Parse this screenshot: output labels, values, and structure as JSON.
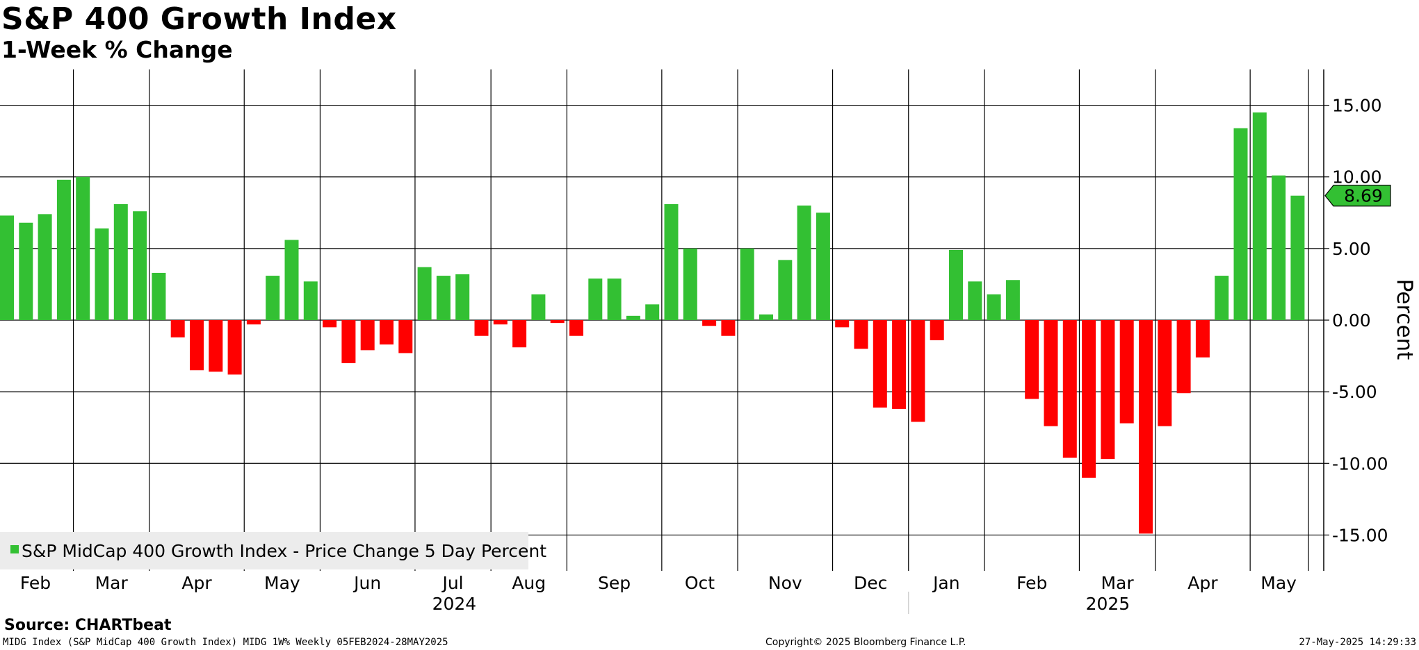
{
  "header": {
    "title": "S&P 400 Growth Index",
    "subtitle": "1-Week % Change"
  },
  "footer": {
    "source": "Source: CHARTbeat",
    "ticker_line": "MIDG Index (S&P MidCap 400 Growth Index) MIDG 1W%  Weekly 05FEB2024-28MAY2025",
    "copyright": "Copyright© 2025 Bloomberg Finance L.P.",
    "timestamp": "27-May-2025 14:29:33"
  },
  "colors": {
    "positive": "#33c033",
    "negative": "#ff0000",
    "last_marker": "#33c033",
    "grid": "#000000",
    "legend_bg": "#ececec"
  },
  "chart_data": {
    "type": "bar",
    "ylabel": "Percent",
    "ylim": [
      -17.5,
      17.5
    ],
    "yticks": [
      "15.00",
      "10.00",
      "5.00",
      "0.00",
      "-5.00",
      "-10.00",
      "-15.00"
    ],
    "ytick_values": [
      15,
      10,
      5,
      0,
      -5,
      -10,
      -15
    ],
    "grid": true,
    "legend": {
      "position": "bottom-left",
      "entries": [
        "S&P MidCap 400 Growth Index - Price Change 5 Day Percent"
      ]
    },
    "last_value_label": "8.69",
    "last_value": 8.69,
    "month_labels": [
      "Feb",
      "Mar",
      "Apr",
      "May",
      "Jun",
      "Jul",
      "Aug",
      "Sep",
      "Oct",
      "Nov",
      "Dec",
      "Jan",
      "Feb",
      "Mar",
      "Apr",
      "May"
    ],
    "month_week_index": [
      0,
      4,
      8,
      13,
      17,
      22,
      26,
      30,
      35,
      39,
      44,
      48,
      52,
      57,
      61,
      66
    ],
    "year_labels": [
      {
        "label": "2024",
        "week_start": 0,
        "week_end": 48
      },
      {
        "label": "2025",
        "week_start": 48,
        "week_end": 69
      }
    ],
    "x": [
      "2024-02-05",
      "2024-02-12",
      "2024-02-19",
      "2024-02-26",
      "2024-03-04",
      "2024-03-11",
      "2024-03-18",
      "2024-03-25",
      "2024-04-01",
      "2024-04-08",
      "2024-04-15",
      "2024-04-22",
      "2024-04-29",
      "2024-05-06",
      "2024-05-13",
      "2024-05-20",
      "2024-05-27",
      "2024-06-03",
      "2024-06-10",
      "2024-06-17",
      "2024-06-24",
      "2024-07-01",
      "2024-07-08",
      "2024-07-15",
      "2024-07-22",
      "2024-07-29",
      "2024-08-05",
      "2024-08-12",
      "2024-08-19",
      "2024-08-26",
      "2024-09-02",
      "2024-09-09",
      "2024-09-16",
      "2024-09-23",
      "2024-09-30",
      "2024-10-07",
      "2024-10-14",
      "2024-10-21",
      "2024-10-28",
      "2024-11-04",
      "2024-11-11",
      "2024-11-18",
      "2024-11-25",
      "2024-12-02",
      "2024-12-09",
      "2024-12-16",
      "2024-12-23",
      "2024-12-30",
      "2025-01-06",
      "2025-01-13",
      "2025-01-20",
      "2025-01-27",
      "2025-02-03",
      "2025-02-10",
      "2025-02-17",
      "2025-02-24",
      "2025-03-03",
      "2025-03-10",
      "2025-03-17",
      "2025-03-24",
      "2025-03-31",
      "2025-04-07",
      "2025-04-14",
      "2025-04-21",
      "2025-04-28",
      "2025-05-05",
      "2025-05-12",
      "2025-05-19",
      "2025-05-26"
    ],
    "series": [
      {
        "name": "S&P MidCap 400 Growth Index - Price Change 5 Day Percent",
        "values": [
          7.3,
          6.8,
          7.4,
          9.8,
          10.0,
          6.4,
          8.1,
          7.6,
          3.3,
          -1.2,
          -3.5,
          -3.6,
          -3.8,
          -0.3,
          3.1,
          5.6,
          2.7,
          -0.5,
          -3.0,
          -2.1,
          -1.7,
          -2.3,
          3.7,
          3.1,
          3.2,
          -1.1,
          -0.3,
          -1.9,
          1.8,
          -0.2,
          -1.1,
          2.9,
          2.9,
          0.3,
          1.1,
          8.1,
          5.0,
          -0.4,
          -1.1,
          5.0,
          0.4,
          4.2,
          8.0,
          7.5,
          -0.5,
          -2.0,
          -6.1,
          -6.2,
          -7.1,
          -1.4,
          4.9,
          2.7,
          1.8,
          2.8,
          -5.5,
          -7.4,
          -9.6,
          -11.0,
          -9.7,
          -7.2,
          -14.9,
          -7.4,
          -5.1,
          -2.6,
          3.1,
          13.4,
          14.5,
          10.1,
          8.69
        ]
      }
    ]
  }
}
